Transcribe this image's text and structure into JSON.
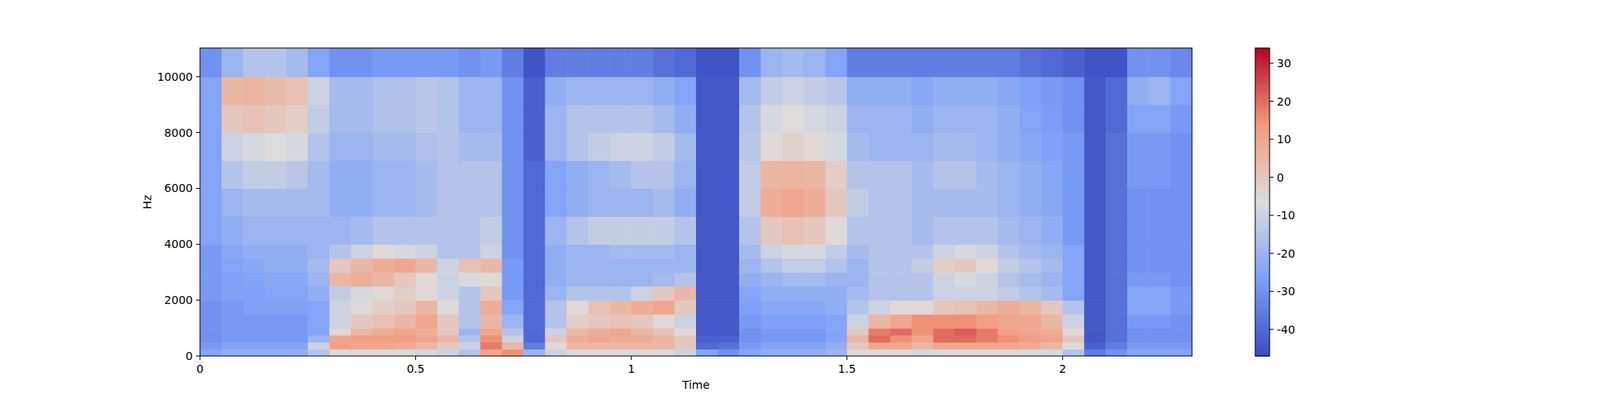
{
  "chart_data": {
    "type": "heatmap",
    "x_label": "Time",
    "y_label": "Hz",
    "xlim": [
      0,
      2.3
    ],
    "ylim": [
      0,
      11025
    ],
    "xticks": [
      0,
      0.5,
      1,
      1.5,
      2
    ],
    "yticks": [
      0,
      2000,
      4000,
      6000,
      8000,
      10000
    ],
    "x": [
      0,
      0.05,
      0.1,
      0.15,
      0.2,
      0.25,
      0.3,
      0.35,
      0.4,
      0.45,
      0.5,
      0.55,
      0.6,
      0.65,
      0.7,
      0.75,
      0.8,
      0.85,
      0.9,
      0.95,
      1.0,
      1.05,
      1.1,
      1.15,
      1.2,
      1.25,
      1.3,
      1.35,
      1.4,
      1.45,
      1.5,
      1.55,
      1.6,
      1.65,
      1.7,
      1.75,
      1.8,
      1.85,
      1.9,
      1.95,
      2.0,
      2.05,
      2.1,
      2.15,
      2.2,
      2.25,
      2.3
    ],
    "y": [
      0,
      250,
      500,
      750,
      1000,
      1500,
      2000,
      2500,
      3000,
      3500,
      4000,
      5000,
      6000,
      7000,
      8000,
      9000,
      10000,
      11025
    ],
    "color_range": [
      -47,
      34
    ],
    "color_ticks": [
      -40,
      -30,
      -20,
      -10,
      0,
      10,
      20,
      30
    ],
    "cells": [
      [
        -25,
        -28,
        -30,
        -30,
        -30,
        -30,
        -28,
        -28,
        -28,
        -28,
        -25,
        -25,
        -25,
        -25,
        -25,
        -25,
        -30
      ],
      [
        -22,
        -25,
        -28,
        -28,
        -28,
        -28,
        -26,
        -26,
        -25,
        -24,
        -22,
        -20,
        -15,
        -10,
        0,
        5,
        -20
      ],
      [
        -22,
        -25,
        -28,
        -28,
        -28,
        -26,
        -26,
        -25,
        -24,
        -22,
        -20,
        -18,
        -12,
        -8,
        2,
        6,
        -15
      ],
      [
        -22,
        -25,
        -28,
        -28,
        -28,
        -26,
        -25,
        -24,
        -22,
        -22,
        -20,
        -18,
        -12,
        -6,
        0,
        4,
        -15
      ],
      [
        -22,
        -25,
        -28,
        -28,
        -28,
        -26,
        -25,
        -24,
        -22,
        -22,
        -20,
        -18,
        -14,
        -8,
        -2,
        2,
        -18
      ],
      [
        -15,
        -10,
        -20,
        -25,
        -25,
        -25,
        -22,
        -20,
        -18,
        -20,
        -20,
        -18,
        -18,
        -15,
        -12,
        -10,
        -25
      ],
      [
        -5,
        12,
        10,
        -5,
        -10,
        -10,
        -12,
        5,
        0,
        -15,
        -20,
        -22,
        -22,
        -20,
        -18,
        -18,
        -30
      ],
      [
        -5,
        10,
        12,
        5,
        0,
        -5,
        -8,
        8,
        5,
        -10,
        -18,
        -22,
        -22,
        -20,
        -18,
        -18,
        -30
      ],
      [
        -5,
        10,
        12,
        8,
        2,
        -2,
        -5,
        5,
        8,
        -5,
        -15,
        -20,
        -20,
        -18,
        -16,
        -16,
        -28
      ],
      [
        -5,
        8,
        12,
        10,
        5,
        0,
        -2,
        0,
        10,
        -8,
        -15,
        -20,
        -20,
        -18,
        -16,
        -16,
        -28
      ],
      [
        -8,
        5,
        10,
        8,
        10,
        5,
        -5,
        -5,
        5,
        -10,
        -15,
        -18,
        -18,
        -16,
        -14,
        -14,
        -28
      ],
      [
        -10,
        0,
        5,
        0,
        0,
        -5,
        -10,
        -10,
        -10,
        -15,
        -15,
        -15,
        -15,
        -15,
        -15,
        -15,
        -28
      ],
      [
        -15,
        -10,
        -15,
        -20,
        -15,
        -15,
        -15,
        -8,
        2,
        -15,
        -15,
        -15,
        -15,
        -18,
        -20,
        -20,
        -30
      ],
      [
        10,
        18,
        15,
        10,
        5,
        8,
        0,
        -5,
        5,
        -10,
        -12,
        -15,
        -15,
        -18,
        -20,
        -20,
        -28
      ],
      [
        15,
        5,
        -10,
        -15,
        -20,
        -25,
        -28,
        -28,
        -28,
        -30,
        -30,
        -30,
        -30,
        -30,
        -30,
        -30,
        -35
      ],
      [
        -20,
        -35,
        -40,
        -40,
        -40,
        -40,
        -40,
        -40,
        -40,
        -40,
        -40,
        -40,
        -40,
        -42,
        -42,
        -42,
        -45
      ],
      [
        -10,
        -5,
        0,
        -10,
        -15,
        -15,
        -20,
        -22,
        -22,
        -22,
        -20,
        -25,
        -25,
        -20,
        -20,
        -22,
        -35
      ],
      [
        -5,
        5,
        8,
        5,
        -2,
        -5,
        -15,
        -20,
        -20,
        -20,
        -15,
        -22,
        -22,
        -15,
        -15,
        -20,
        -35
      ],
      [
        -5,
        5,
        10,
        8,
        0,
        2,
        -15,
        -20,
        -20,
        -20,
        -12,
        -20,
        -20,
        -12,
        -15,
        -20,
        -35
      ],
      [
        -5,
        5,
        8,
        10,
        2,
        5,
        -15,
        -20,
        -20,
        -18,
        -12,
        -20,
        -18,
        -10,
        -15,
        -20,
        -35
      ],
      [
        -5,
        5,
        8,
        5,
        0,
        8,
        -10,
        -20,
        -20,
        -18,
        -12,
        -20,
        -15,
        -10,
        -15,
        -20,
        -35
      ],
      [
        -5,
        5,
        5,
        2,
        -5,
        10,
        0,
        -18,
        -20,
        -18,
        -12,
        -18,
        -15,
        -12,
        -18,
        -22,
        -38
      ],
      [
        -10,
        0,
        0,
        -5,
        -10,
        0,
        5,
        -15,
        -20,
        -20,
        -15,
        -22,
        -20,
        -18,
        -22,
        -25,
        -40
      ],
      [
        -25,
        -40,
        -42,
        -44,
        -44,
        -44,
        -44,
        -44,
        -44,
        -44,
        -44,
        -44,
        -44,
        -44,
        -44,
        -44,
        -45
      ],
      [
        -30,
        -38,
        -42,
        -44,
        -44,
        -44,
        -44,
        -44,
        -44,
        -44,
        -44,
        -44,
        -44,
        -44,
        -44,
        -44,
        -45
      ],
      [
        -25,
        -28,
        -30,
        -30,
        -28,
        -26,
        -25,
        -22,
        -20,
        -18,
        -15,
        -12,
        -12,
        -14,
        -15,
        -18,
        -30
      ],
      [
        -22,
        -25,
        -28,
        -28,
        -26,
        -24,
        -22,
        -20,
        -15,
        -10,
        0,
        8,
        5,
        -5,
        -8,
        -12,
        -20
      ],
      [
        -22,
        -25,
        -28,
        -28,
        -26,
        -24,
        -22,
        -18,
        -12,
        -8,
        2,
        10,
        6,
        -3,
        -6,
        -10,
        -18
      ],
      [
        -22,
        -25,
        -28,
        -28,
        -26,
        -24,
        -22,
        -18,
        -12,
        -8,
        0,
        8,
        5,
        -5,
        -8,
        -12,
        -20
      ],
      [
        -20,
        -22,
        -25,
        -25,
        -25,
        -22,
        -22,
        -20,
        -15,
        -12,
        -5,
        0,
        -2,
        -8,
        -10,
        -14,
        -25
      ],
      [
        -5,
        0,
        5,
        0,
        -10,
        -15,
        -18,
        -20,
        -20,
        -18,
        -15,
        -12,
        -15,
        -18,
        -20,
        -22,
        -35
      ],
      [
        -5,
        10,
        20,
        18,
        5,
        -10,
        -15,
        -15,
        -15,
        -15,
        -15,
        -15,
        -15,
        -20,
        -20,
        -22,
        -35
      ],
      [
        -5,
        10,
        15,
        20,
        10,
        -5,
        -15,
        -15,
        -15,
        -15,
        -15,
        -15,
        -15,
        -20,
        -20,
        -22,
        -35
      ],
      [
        -8,
        5,
        10,
        15,
        15,
        -5,
        -15,
        -15,
        -12,
        -15,
        -18,
        -18,
        -18,
        -20,
        -22,
        -24,
        -35
      ],
      [
        -5,
        10,
        20,
        20,
        15,
        0,
        -10,
        -10,
        -2,
        -10,
        -15,
        -18,
        -15,
        -18,
        -20,
        -22,
        -35
      ],
      [
        -5,
        10,
        20,
        22,
        15,
        2,
        -10,
        -8,
        0,
        -8,
        -15,
        -18,
        -15,
        -18,
        -20,
        -22,
        -35
      ],
      [
        -5,
        10,
        18,
        18,
        12,
        5,
        -10,
        -10,
        -5,
        -10,
        -15,
        -18,
        -18,
        -20,
        -20,
        -22,
        -35
      ],
      [
        -5,
        10,
        15,
        12,
        10,
        8,
        -12,
        -15,
        -12,
        -15,
        -18,
        -20,
        -20,
        -22,
        -22,
        -24,
        -35
      ],
      [
        -5,
        8,
        12,
        10,
        10,
        5,
        -15,
        -18,
        -15,
        -18,
        -20,
        -22,
        -22,
        -24,
        -25,
        -26,
        -38
      ],
      [
        -8,
        5,
        10,
        8,
        5,
        0,
        -18,
        -20,
        -18,
        -20,
        -22,
        -24,
        -24,
        -26,
        -27,
        -28,
        -40
      ],
      [
        -15,
        -5,
        0,
        -5,
        -10,
        -15,
        -25,
        -25,
        -25,
        -25,
        -28,
        -28,
        -28,
        -28,
        -30,
        -30,
        -42
      ],
      [
        -35,
        -42,
        -44,
        -44,
        -44,
        -44,
        -44,
        -44,
        -44,
        -44,
        -44,
        -44,
        -44,
        -44,
        -44,
        -44,
        -45
      ],
      [
        -30,
        -35,
        -38,
        -38,
        -38,
        -38,
        -38,
        -38,
        -38,
        -38,
        -38,
        -38,
        -38,
        -38,
        -40,
        -40,
        -45
      ],
      [
        -25,
        -28,
        -30,
        -30,
        -28,
        -25,
        -25,
        -28,
        -30,
        -30,
        -30,
        -30,
        -28,
        -28,
        -25,
        -22,
        -30
      ],
      [
        -25,
        -28,
        -30,
        -30,
        -28,
        -25,
        -25,
        -28,
        -30,
        -30,
        -30,
        -30,
        -28,
        -28,
        -25,
        -20,
        -30
      ],
      [
        -25,
        -28,
        -30,
        -30,
        -30,
        -28,
        -28,
        -30,
        -30,
        -30,
        -30,
        -30,
        -30,
        -30,
        -28,
        -25,
        -32
      ]
    ]
  }
}
